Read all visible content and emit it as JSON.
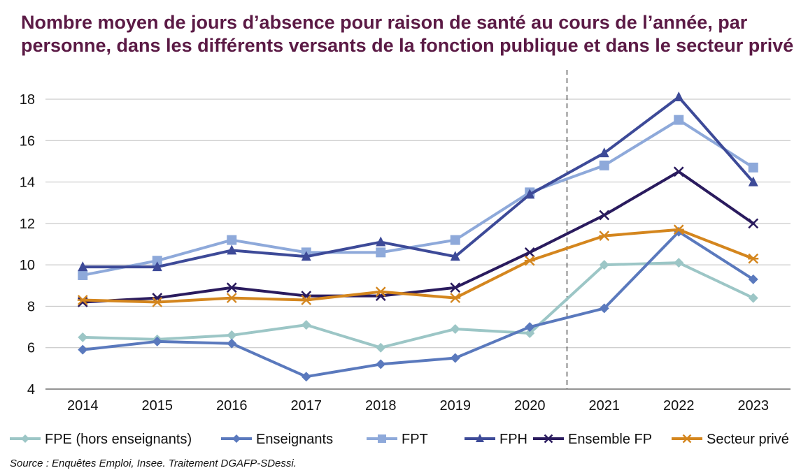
{
  "chart_data": {
    "type": "line",
    "title": "Nombre moyen de jours d’absence pour raison de santé au cours de l’année, par personne, dans les différents versants de la fonction publique et dans le secteur privé",
    "x": [
      "2014",
      "2015",
      "2016",
      "2017",
      "2018",
      "2019",
      "2020",
      "2021",
      "2022",
      "2023"
    ],
    "ylim": [
      4,
      18
    ],
    "yticks": [
      4,
      6,
      8,
      10,
      12,
      14,
      16,
      18
    ],
    "grid": "horizontal",
    "break_marker": "dashed vertical line between 2020 and 2021",
    "legend_position": "bottom",
    "series": [
      {
        "name": "FPE (hors enseignants)",
        "color": "#9cc6c6",
        "marker": "diamond",
        "values": [
          6.5,
          6.4,
          6.6,
          7.1,
          6.0,
          6.9,
          6.7,
          10.0,
          10.1,
          8.4
        ]
      },
      {
        "name": "Enseignants",
        "color": "#5a79bd",
        "marker": "diamond",
        "values": [
          5.9,
          6.3,
          6.2,
          4.6,
          5.2,
          5.5,
          7.0,
          7.9,
          11.6,
          9.3
        ]
      },
      {
        "name": "FPT",
        "color": "#8ea9da",
        "marker": "square",
        "values": [
          9.5,
          10.2,
          11.2,
          10.6,
          10.6,
          11.2,
          13.5,
          14.8,
          17.0,
          14.7
        ]
      },
      {
        "name": "FPH",
        "color": "#3d4a98",
        "marker": "triangle",
        "values": [
          9.9,
          9.9,
          10.7,
          10.4,
          11.1,
          10.4,
          13.4,
          15.4,
          18.1,
          14.0
        ]
      },
      {
        "name": "Ensemble FP",
        "color": "#2a1b5e",
        "marker": "x",
        "values": [
          8.2,
          8.4,
          8.9,
          8.5,
          8.5,
          8.9,
          10.6,
          12.4,
          14.5,
          12.0
        ]
      },
      {
        "name": "Secteur privé",
        "color": "#d4861e",
        "marker": "star",
        "values": [
          8.3,
          8.2,
          8.4,
          8.3,
          8.7,
          8.4,
          10.2,
          11.4,
          11.7,
          10.3
        ]
      }
    ]
  },
  "source": "Source : Enquêtes Emploi, Insee. Traitement DGAFP-SDessi."
}
